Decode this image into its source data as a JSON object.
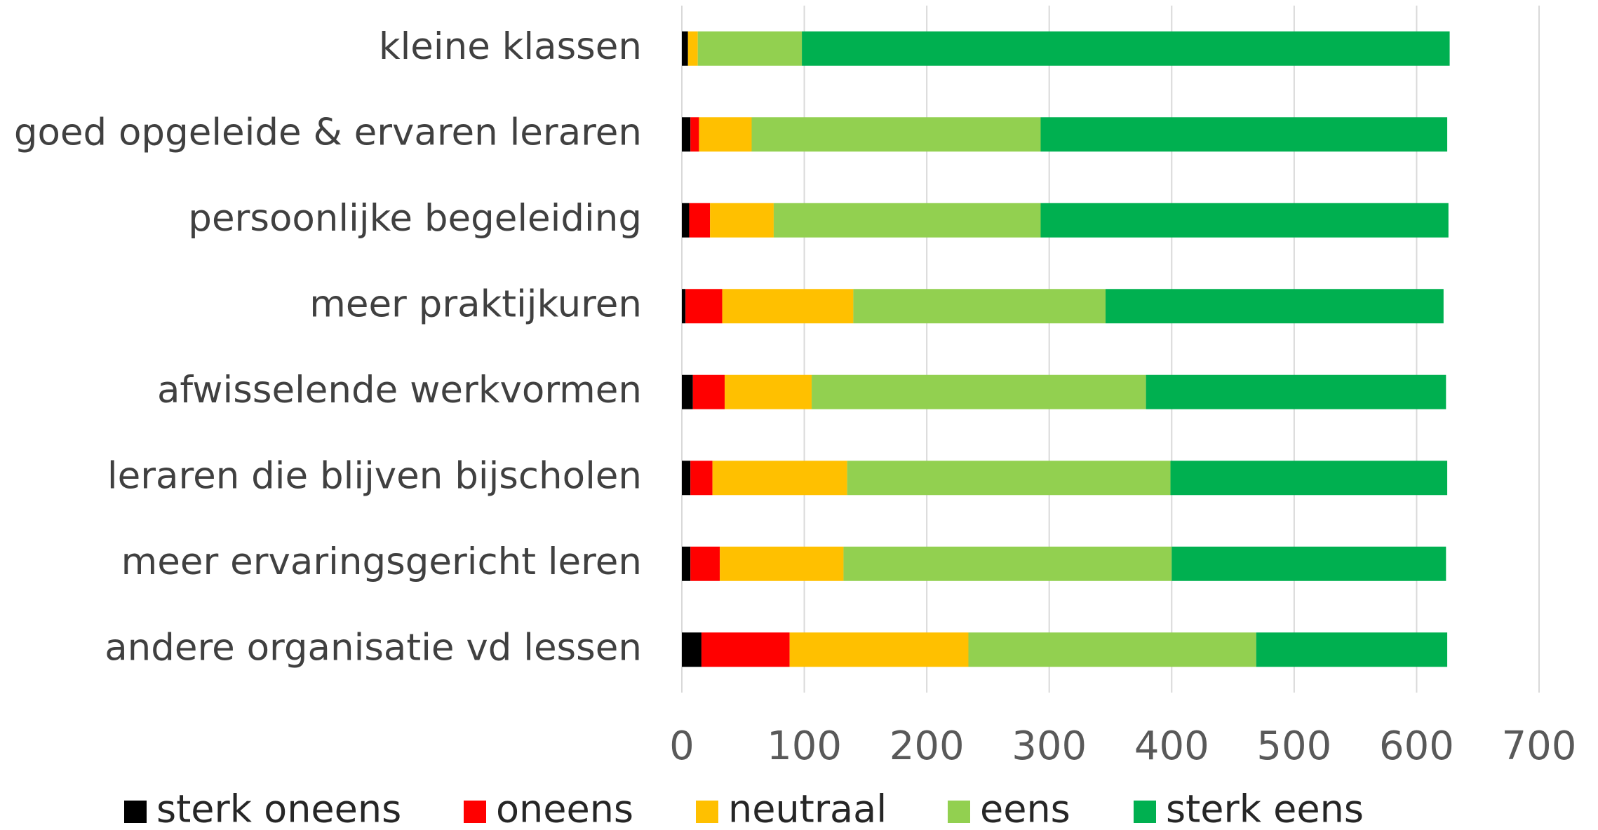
{
  "chart_data": {
    "type": "stacked_barh",
    "categories": [
      "kleine klassen",
      "goed opgeleide & ervaren leraren",
      "persoonlijke begeleiding",
      "meer praktijkuren",
      "afwisselende werkvormen",
      "leraren die blijven bijscholen",
      "meer ervaringsgericht leren",
      "andere organisatie vd lessen"
    ],
    "series": [
      {
        "name": "sterk oneens",
        "color": "#000000",
        "values": [
          5,
          7,
          6,
          3,
          9,
          7,
          7,
          16
        ]
      },
      {
        "name": "oneens",
        "color": "#ff0000",
        "values": [
          0,
          7,
          17,
          30,
          26,
          18,
          24,
          72
        ]
      },
      {
        "name": "neutraal",
        "color": "#ffc000",
        "values": [
          8,
          43,
          52,
          107,
          71,
          110,
          101,
          146
        ]
      },
      {
        "name": "eens",
        "color": "#92d050",
        "values": [
          85,
          236,
          218,
          206,
          273,
          264,
          268,
          235
        ]
      },
      {
        "name": "sterk eens",
        "color": "#00b050",
        "values": [
          529,
          332,
          333,
          276,
          245,
          226,
          224,
          156
        ]
      }
    ],
    "xlim": [
      0,
      700
    ],
    "xticks": [
      0,
      100,
      200,
      300,
      400,
      500,
      600,
      700
    ],
    "grid": true,
    "legend": "bottom"
  }
}
